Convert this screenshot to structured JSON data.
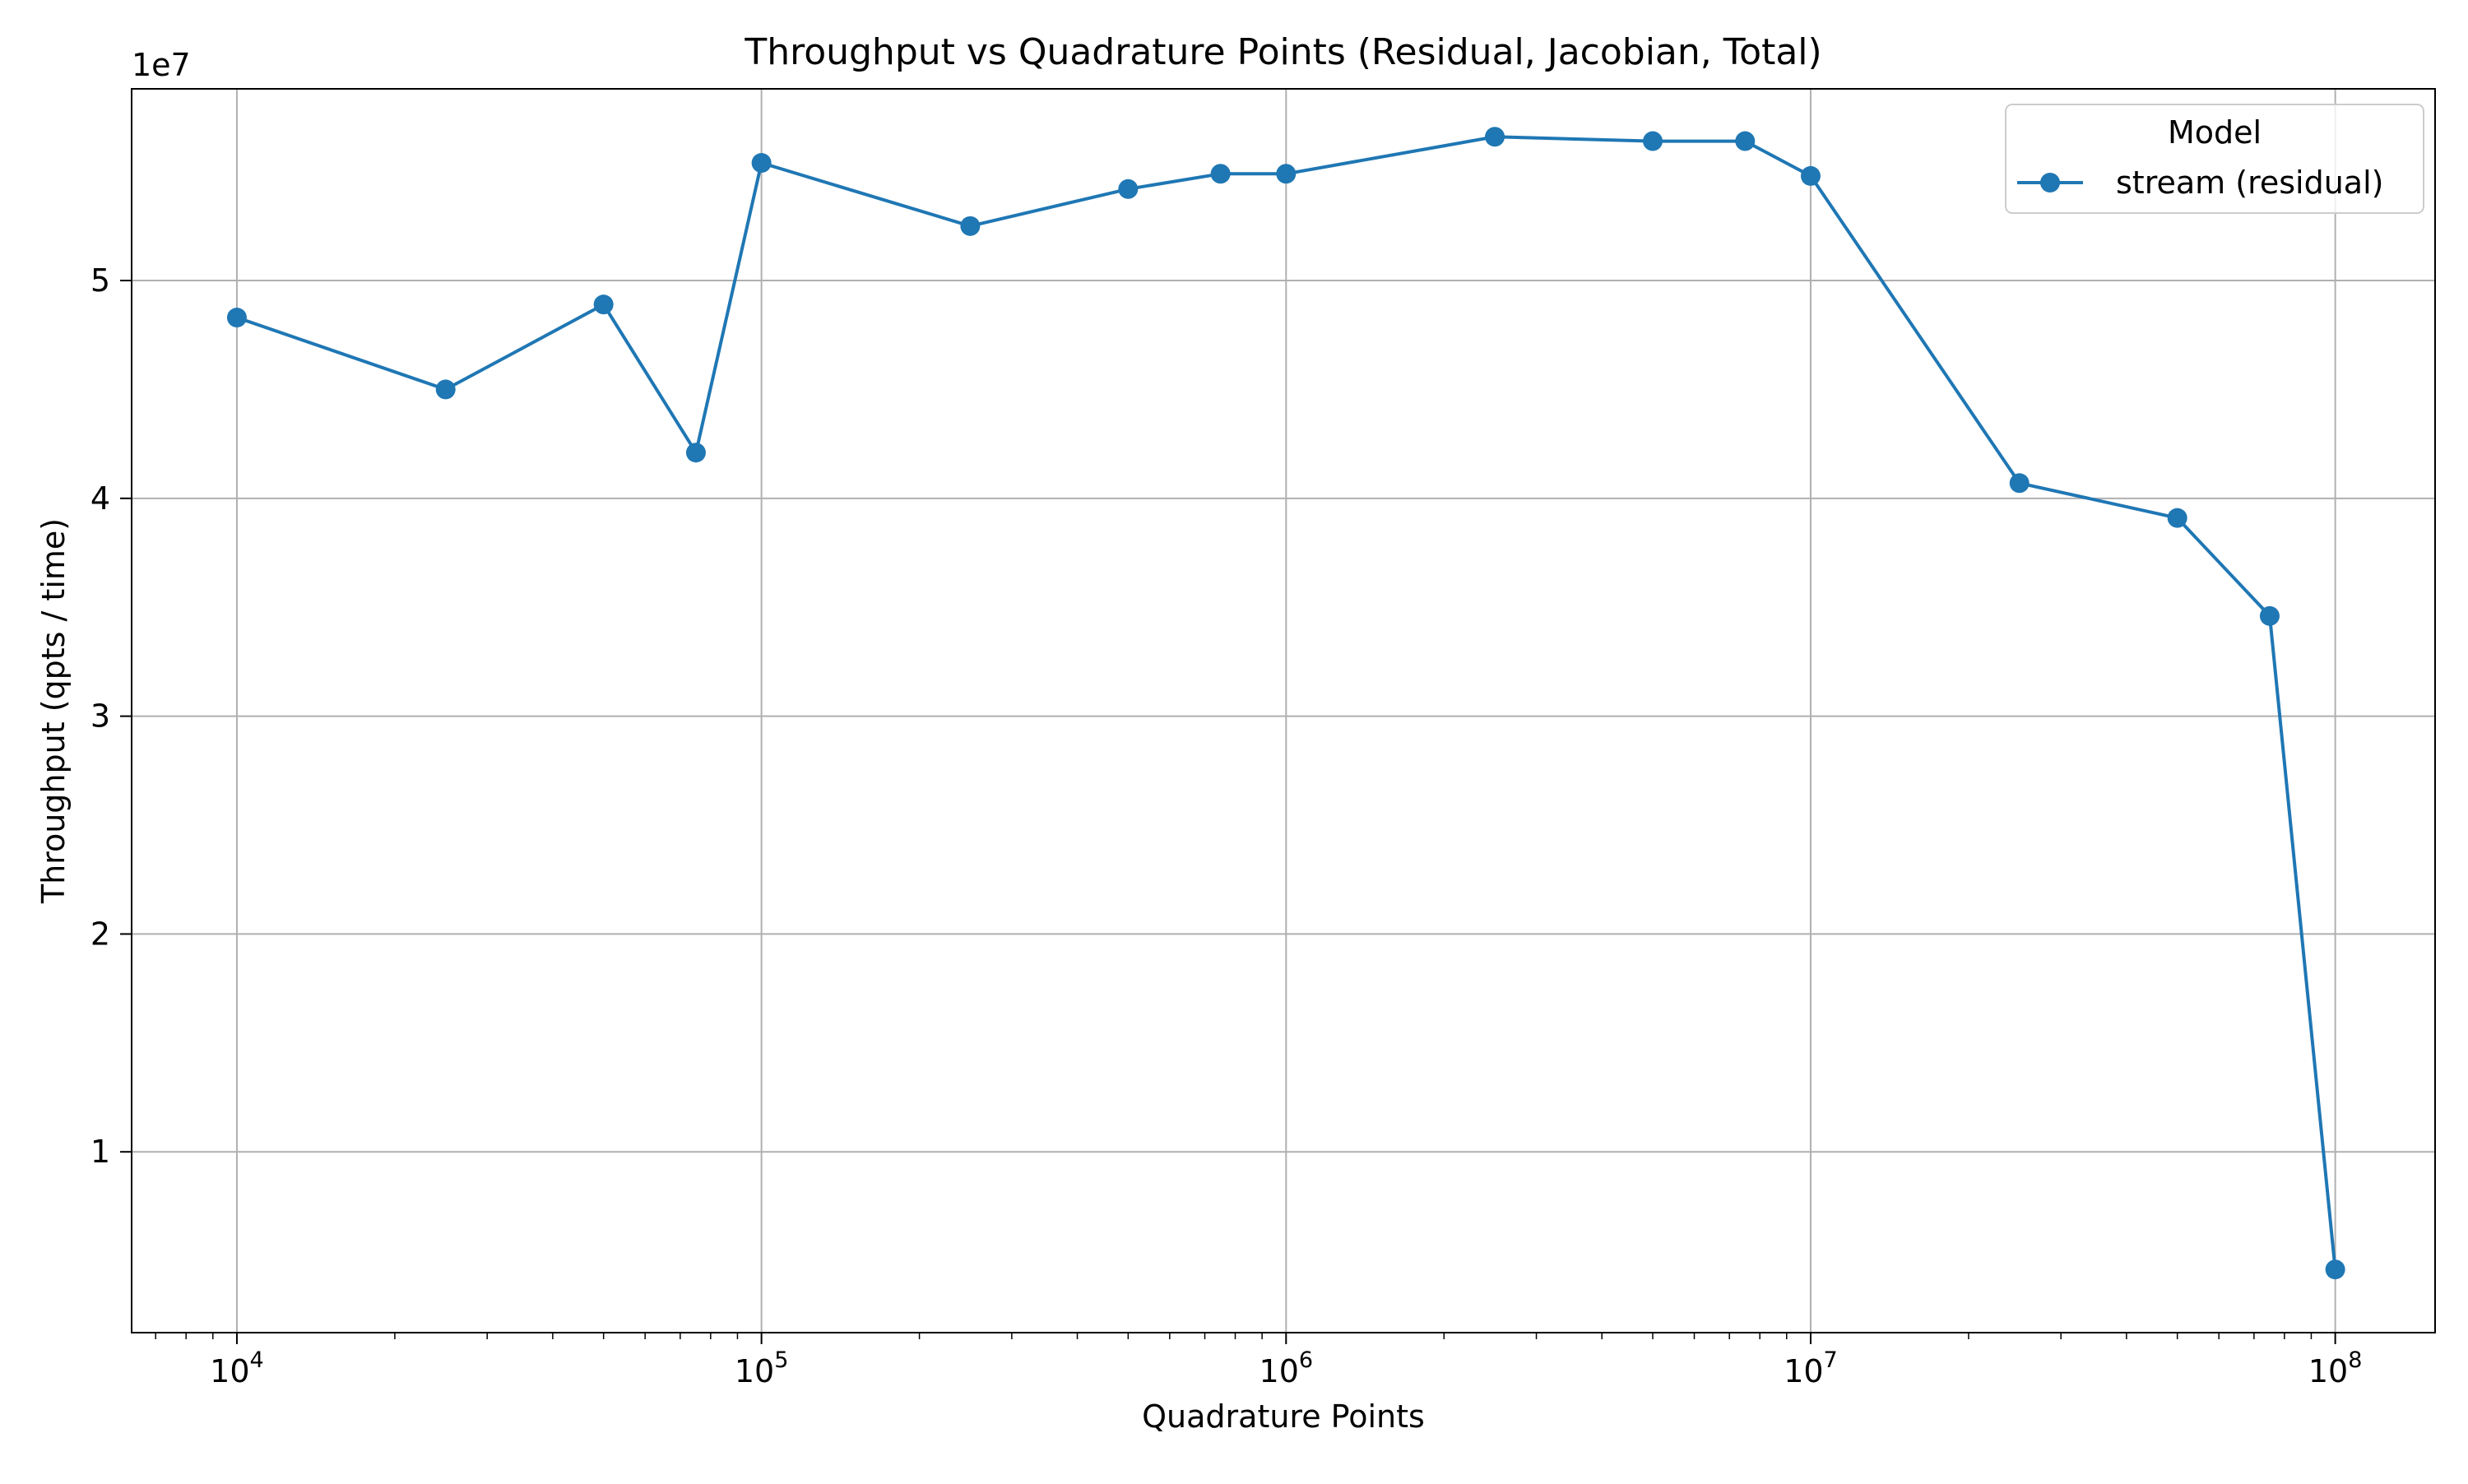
{
  "chart_data": {
    "type": "line",
    "title": "Throughput vs Quadrature Points (Residual, Jacobian, Total)",
    "xlabel": "Quadrature Points",
    "ylabel": "Throughput (qpts / time)",
    "y_offset_label": "1e7",
    "x_scale": "log",
    "xlim": [
      6300,
      155000000
    ],
    "ylim": [
      1700000,
      58800000
    ],
    "x_ticks": [
      {
        "value": 10000,
        "base": "10",
        "exp": "4"
      },
      {
        "value": 100000,
        "base": "10",
        "exp": "5"
      },
      {
        "value": 1000000,
        "base": "10",
        "exp": "6"
      },
      {
        "value": 10000000,
        "base": "10",
        "exp": "7"
      },
      {
        "value": 100000000,
        "base": "10",
        "exp": "8"
      }
    ],
    "y_ticks": [
      {
        "value": 10000000,
        "label": "1"
      },
      {
        "value": 20000000,
        "label": "2"
      },
      {
        "value": 30000000,
        "label": "3"
      },
      {
        "value": 40000000,
        "label": "4"
      },
      {
        "value": 50000000,
        "label": "5"
      }
    ],
    "grid": true,
    "legend": {
      "title": "Model",
      "placement": "top-right"
    },
    "series": [
      {
        "name": "stream (residual)",
        "color": "#1f77b4",
        "marker": "circle",
        "x": [
          10000,
          25000,
          50000,
          75000,
          100000,
          250000,
          500000,
          750000,
          1000000,
          2500000,
          5000000,
          7500000,
          10000000,
          25000000,
          50000000,
          75000000,
          100000000
        ],
        "y": [
          48300000,
          45000000,
          48900000,
          42100000,
          55400000,
          52500000,
          54200000,
          54900000,
          54900000,
          56600000,
          56400000,
          56400000,
          54800000,
          40700000,
          39100000,
          34600000,
          4600000
        ]
      }
    ]
  }
}
